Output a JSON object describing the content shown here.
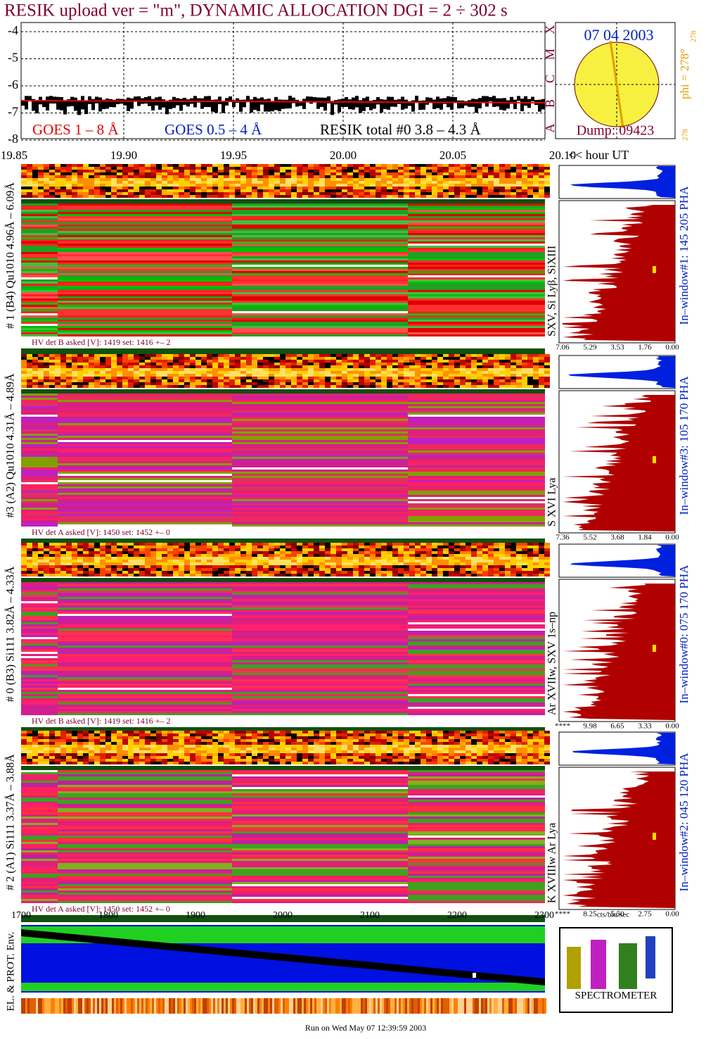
{
  "title": "RESIK upload ver = \"m\", DYNAMIC ALLOCATION  DGI =   2 ÷ 302 s",
  "lightcurve": {
    "yticks": [
      "-4",
      "-5",
      "-6",
      "-7",
      "-8"
    ],
    "legend": [
      "GOES 1 – 8 Å",
      "GOES 0.5 – 4 Å",
      "RESIK total #0  3.8 – 4.3 Å"
    ],
    "xticks": [
      "19.85",
      "19.90",
      "19.95",
      "20.00",
      "20.05",
      "20.10"
    ],
    "xlabel": "<< hour UT"
  },
  "sun": {
    "date": "07 04 2003",
    "dump": "Dump: 09423",
    "phi": "phi = 278°",
    "phi_top": "278",
    "phi_bottom": "278",
    "classes": [
      "X",
      "M",
      "C",
      "B",
      "A"
    ]
  },
  "detectors": [
    {
      "label": "# 1 (B4) Qu1010 4.96Å – 6.09Å",
      "hv": "HV det B asked [V]:  1419 set:  1416 +–   2",
      "lines": "SXV, Si Lyβ, SiXIII",
      "window": "In–window#1:  145 205 PHA",
      "hist_ticks": [
        "7.06",
        "5.29",
        "3.53",
        "1.76",
        "0.00"
      ]
    },
    {
      "label": "#3 (A2) Qu1010  4.31Å – 4.89Å",
      "hv": "HV det A asked [V]:  1450 set:  1452 +–   0",
      "lines": "S XVI Lya",
      "window": "In–window#3:  105 170 PHA",
      "hist_ticks": [
        "7.36",
        "5.52",
        "3.68",
        "1.84",
        "0.00"
      ]
    },
    {
      "label": "# 0 (B3) Si111  3.82Å – 4.33Å",
      "hv": "HV det B asked [V]:  1419 set:  1416 +–   2",
      "lines": "Ar XVIIw,  SXV 1s–np",
      "window": "In–window#0:  075 170 PHA",
      "hist_ticks": [
        "****",
        "9.98",
        "6.65",
        "3.33",
        "0.00"
      ]
    },
    {
      "label": "# 2 (A1) Si111  3.37Å – 3.88Å",
      "hv": "HV det A asked [V]:  1450 set:  1452 +–   0",
      "lines": "K XVIIIw  Ar Lya",
      "window": "In–window#2:  045 120 PHA",
      "hist_ticks": [
        "****",
        "8.25",
        "5.50",
        "2.75",
        "0.00"
      ]
    }
  ],
  "bottom": {
    "xticks": [
      "1700",
      "1800",
      "1900",
      "2000",
      "2100",
      "2200",
      "2300"
    ],
    "ylabel": "EL. & PROT. Env.",
    "hist_xlabel": "cts/bin/sec",
    "footer": "Run on Wed May 07 12:39:59 2003",
    "logo_caption": "SPECTROMETER"
  }
}
